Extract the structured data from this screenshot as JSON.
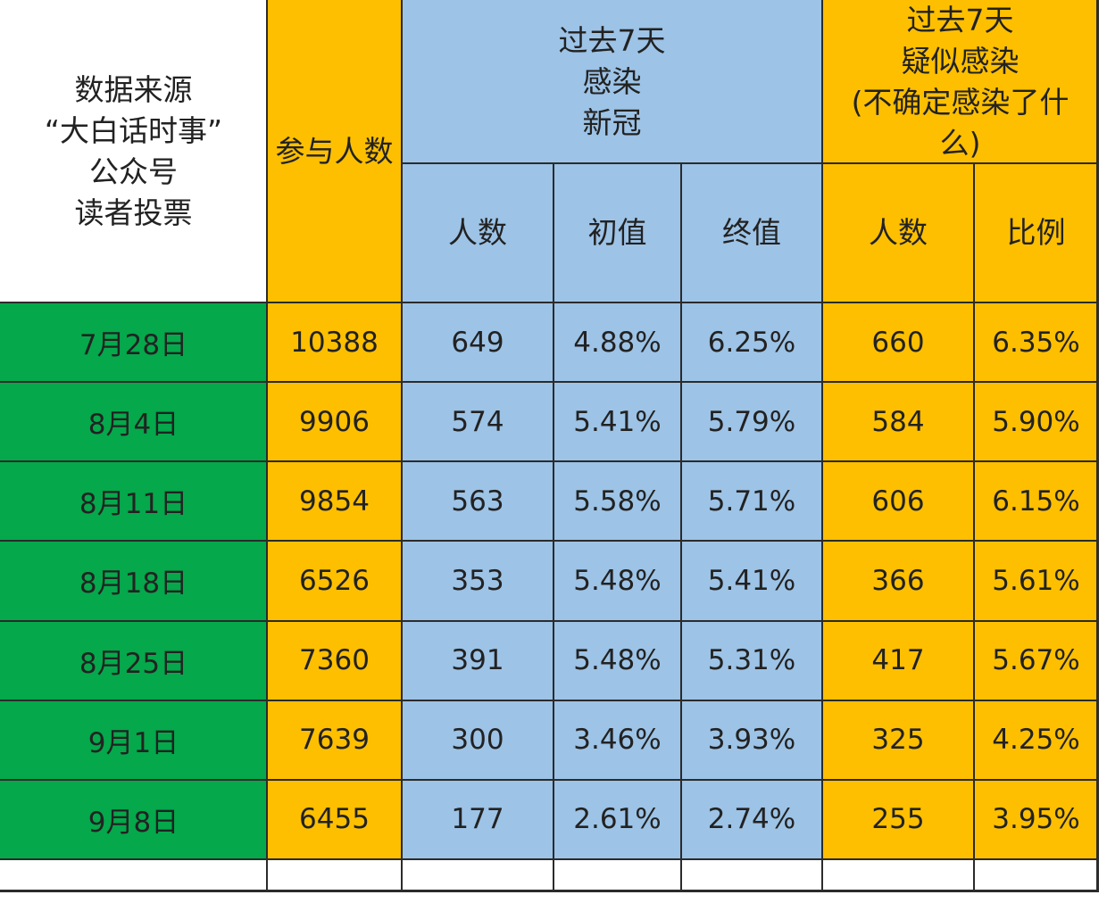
{
  "chart_data": {
    "type": "table",
    "header": {
      "source_label": "数据来源\n“大白话时事”\n公众号\n读者投票",
      "participants": "参与人数",
      "group_confirmed": "过去7天\n感染\n新冠",
      "group_suspected": "过去7天\n疑似感染\n(不确定感染了什\n么)",
      "sub_count": "人数",
      "sub_initial": "初值",
      "sub_final": "终值",
      "sub_count2": "人数",
      "sub_ratio": "比例"
    },
    "rows": [
      {
        "date": "7月28日",
        "participants": "10388",
        "count": "649",
        "initial": "4.88%",
        "final": "6.25%",
        "suspected": "660",
        "ratio": "6.35%"
      },
      {
        "date": "8月4日",
        "participants": "9906",
        "count": "574",
        "initial": "5.41%",
        "final": "5.79%",
        "suspected": "584",
        "ratio": "5.90%"
      },
      {
        "date": "8月11日",
        "participants": "9854",
        "count": "563",
        "initial": "5.58%",
        "final": "5.71%",
        "suspected": "606",
        "ratio": "6.15%"
      },
      {
        "date": "8月18日",
        "participants": "6526",
        "count": "353",
        "initial": "5.48%",
        "final": "5.41%",
        "suspected": "366",
        "ratio": "5.61%"
      },
      {
        "date": "8月25日",
        "participants": "7360",
        "count": "391",
        "initial": "5.48%",
        "final": "5.31%",
        "suspected": "417",
        "ratio": "5.67%"
      },
      {
        "date": "9月1日",
        "participants": "7639",
        "count": "300",
        "initial": "3.46%",
        "final": "3.93%",
        "suspected": "325",
        "ratio": "4.25%"
      },
      {
        "date": "9月8日",
        "participants": "6455",
        "count": "177",
        "initial": "2.61%",
        "final": "2.74%",
        "suspected": "255",
        "ratio": "3.95%"
      }
    ]
  },
  "colors": {
    "date_column": "#05a84b",
    "participants_column": "#fdbf00",
    "confirmed_group": "#9dc3e6",
    "suspected_group": "#fdbf00"
  }
}
